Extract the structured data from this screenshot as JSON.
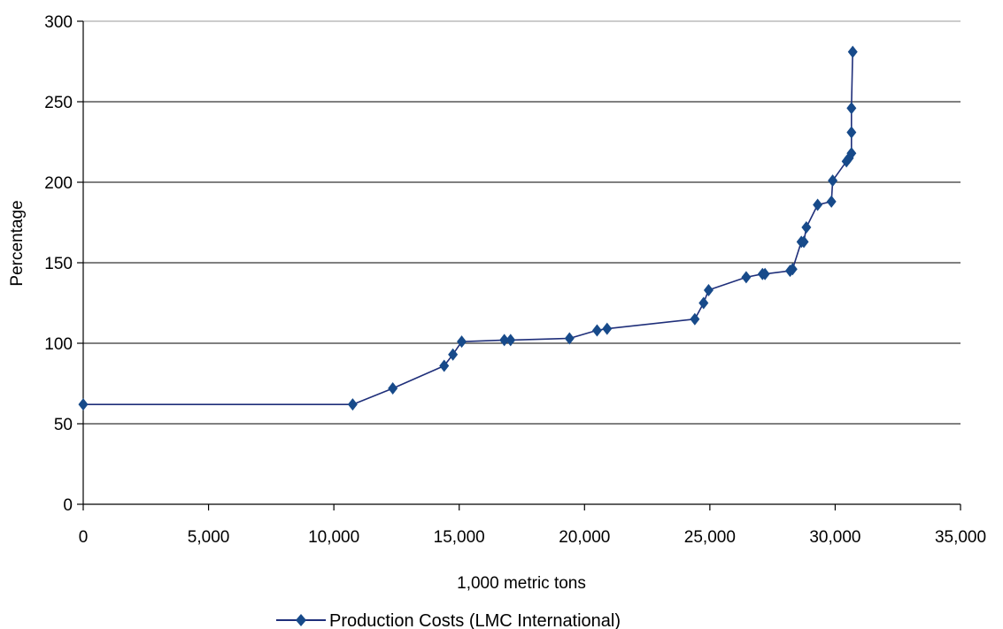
{
  "chart_data": {
    "type": "line",
    "title": "",
    "xlabel": "1,000 metric tons",
    "ylabel": "Percentage",
    "xlim": [
      0,
      35000
    ],
    "ylim": [
      0,
      300
    ],
    "x_ticks": [
      0,
      5000,
      10000,
      15000,
      20000,
      25000,
      30000,
      35000
    ],
    "x_tick_labels": [
      "0",
      "5,000",
      "10,000",
      "15,000",
      "20,000",
      "25,000",
      "30,000",
      "35,000"
    ],
    "y_ticks": [
      0,
      50,
      100,
      150,
      200,
      250,
      300
    ],
    "y_tick_labels": [
      "0",
      "50",
      "100",
      "150",
      "200",
      "250",
      "300"
    ],
    "grid": "horizontal",
    "legend_position": "bottom-center",
    "colors": {
      "series": "#1f2f7a",
      "marker": "#174a8a",
      "grid": "#000000",
      "top_line": "#999999"
    },
    "series": [
      {
        "name": "Production Costs (LMC International)",
        "marker": "diamond",
        "points": [
          [
            0,
            62
          ],
          [
            10750,
            62
          ],
          [
            12350,
            72
          ],
          [
            14400,
            86
          ],
          [
            14750,
            93
          ],
          [
            15100,
            101
          ],
          [
            16800,
            102
          ],
          [
            17050,
            102
          ],
          [
            19400,
            103
          ],
          [
            20500,
            108
          ],
          [
            20900,
            109
          ],
          [
            24400,
            115
          ],
          [
            24750,
            125
          ],
          [
            24950,
            133
          ],
          [
            26450,
            141
          ],
          [
            27100,
            143
          ],
          [
            27200,
            143
          ],
          [
            28200,
            145
          ],
          [
            28300,
            146
          ],
          [
            28650,
            163
          ],
          [
            28750,
            163
          ],
          [
            28850,
            172
          ],
          [
            29300,
            186
          ],
          [
            29850,
            188
          ],
          [
            29900,
            201
          ],
          [
            30450,
            213
          ],
          [
            30550,
            215
          ],
          [
            30650,
            218
          ],
          [
            30650,
            231
          ],
          [
            30650,
            246
          ],
          [
            30700,
            281
          ]
        ]
      }
    ]
  }
}
